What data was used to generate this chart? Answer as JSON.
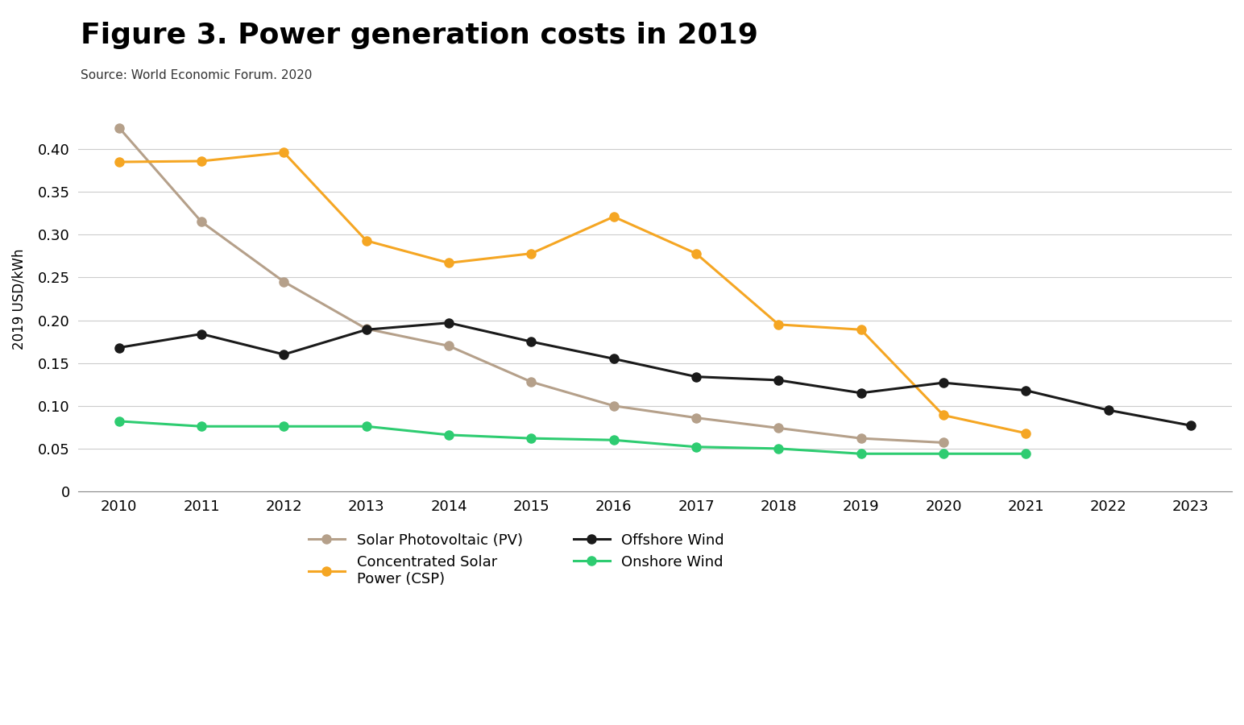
{
  "title": "Figure 3. Power generation costs in 2019",
  "source": "Source: World Economic Forum. 2020",
  "ylabel": "2019 USD/kWh",
  "ylim": [
    0,
    0.45
  ],
  "yticks": [
    0,
    0.05,
    0.1,
    0.15,
    0.2,
    0.25,
    0.3,
    0.35,
    0.4
  ],
  "ytick_labels": [
    "0",
    "0.05",
    "0.10",
    "0.15",
    "0.20",
    "0.25",
    "0.30",
    "0.35",
    "0.40"
  ],
  "background_color": "#ffffff",
  "series": {
    "solar_pv": {
      "label": "Solar Photovoltaic (PV)",
      "color": "#b5a08a",
      "years": [
        2010,
        2011,
        2012,
        2013,
        2014,
        2015,
        2016,
        2017,
        2018,
        2019,
        2020
      ],
      "values": [
        0.425,
        0.315,
        0.245,
        0.19,
        0.17,
        0.128,
        0.1,
        0.086,
        0.074,
        0.062,
        0.057
      ]
    },
    "csp": {
      "label": "Concentrated Solar\nPower (CSP)",
      "color": "#f5a623",
      "years": [
        2010,
        2011,
        2012,
        2013,
        2014,
        2015,
        2016,
        2017,
        2018,
        2019,
        2020,
        2021
      ],
      "values": [
        0.385,
        0.386,
        0.396,
        0.293,
        0.267,
        0.278,
        0.321,
        0.278,
        0.195,
        0.189,
        0.089,
        0.068
      ]
    },
    "offshore_wind": {
      "label": "Offshore Wind",
      "color": "#1a1a1a",
      "years": [
        2010,
        2011,
        2012,
        2013,
        2014,
        2015,
        2016,
        2017,
        2018,
        2019,
        2020,
        2021,
        2022,
        2023
      ],
      "values": [
        0.168,
        0.184,
        0.16,
        0.189,
        0.197,
        0.175,
        0.155,
        0.134,
        0.13,
        0.115,
        0.127,
        0.118,
        0.095,
        0.077
      ]
    },
    "onshore_wind": {
      "label": "Onshore Wind",
      "color": "#2ecc71",
      "years": [
        2010,
        2011,
        2012,
        2013,
        2014,
        2015,
        2016,
        2017,
        2018,
        2019,
        2020,
        2021
      ],
      "values": [
        0.082,
        0.076,
        0.076,
        0.076,
        0.066,
        0.062,
        0.06,
        0.052,
        0.05,
        0.044,
        0.044,
        0.044
      ]
    }
  },
  "xmin": 2009.5,
  "xmax": 2023.5,
  "xticks": [
    2010,
    2011,
    2012,
    2013,
    2014,
    2015,
    2016,
    2017,
    2018,
    2019,
    2020,
    2021,
    2022,
    2023
  ],
  "title_fontsize": 26,
  "source_fontsize": 11,
  "axis_label_fontsize": 12,
  "tick_fontsize": 13,
  "legend_fontsize": 13,
  "line_width": 2.2,
  "marker_size": 8
}
